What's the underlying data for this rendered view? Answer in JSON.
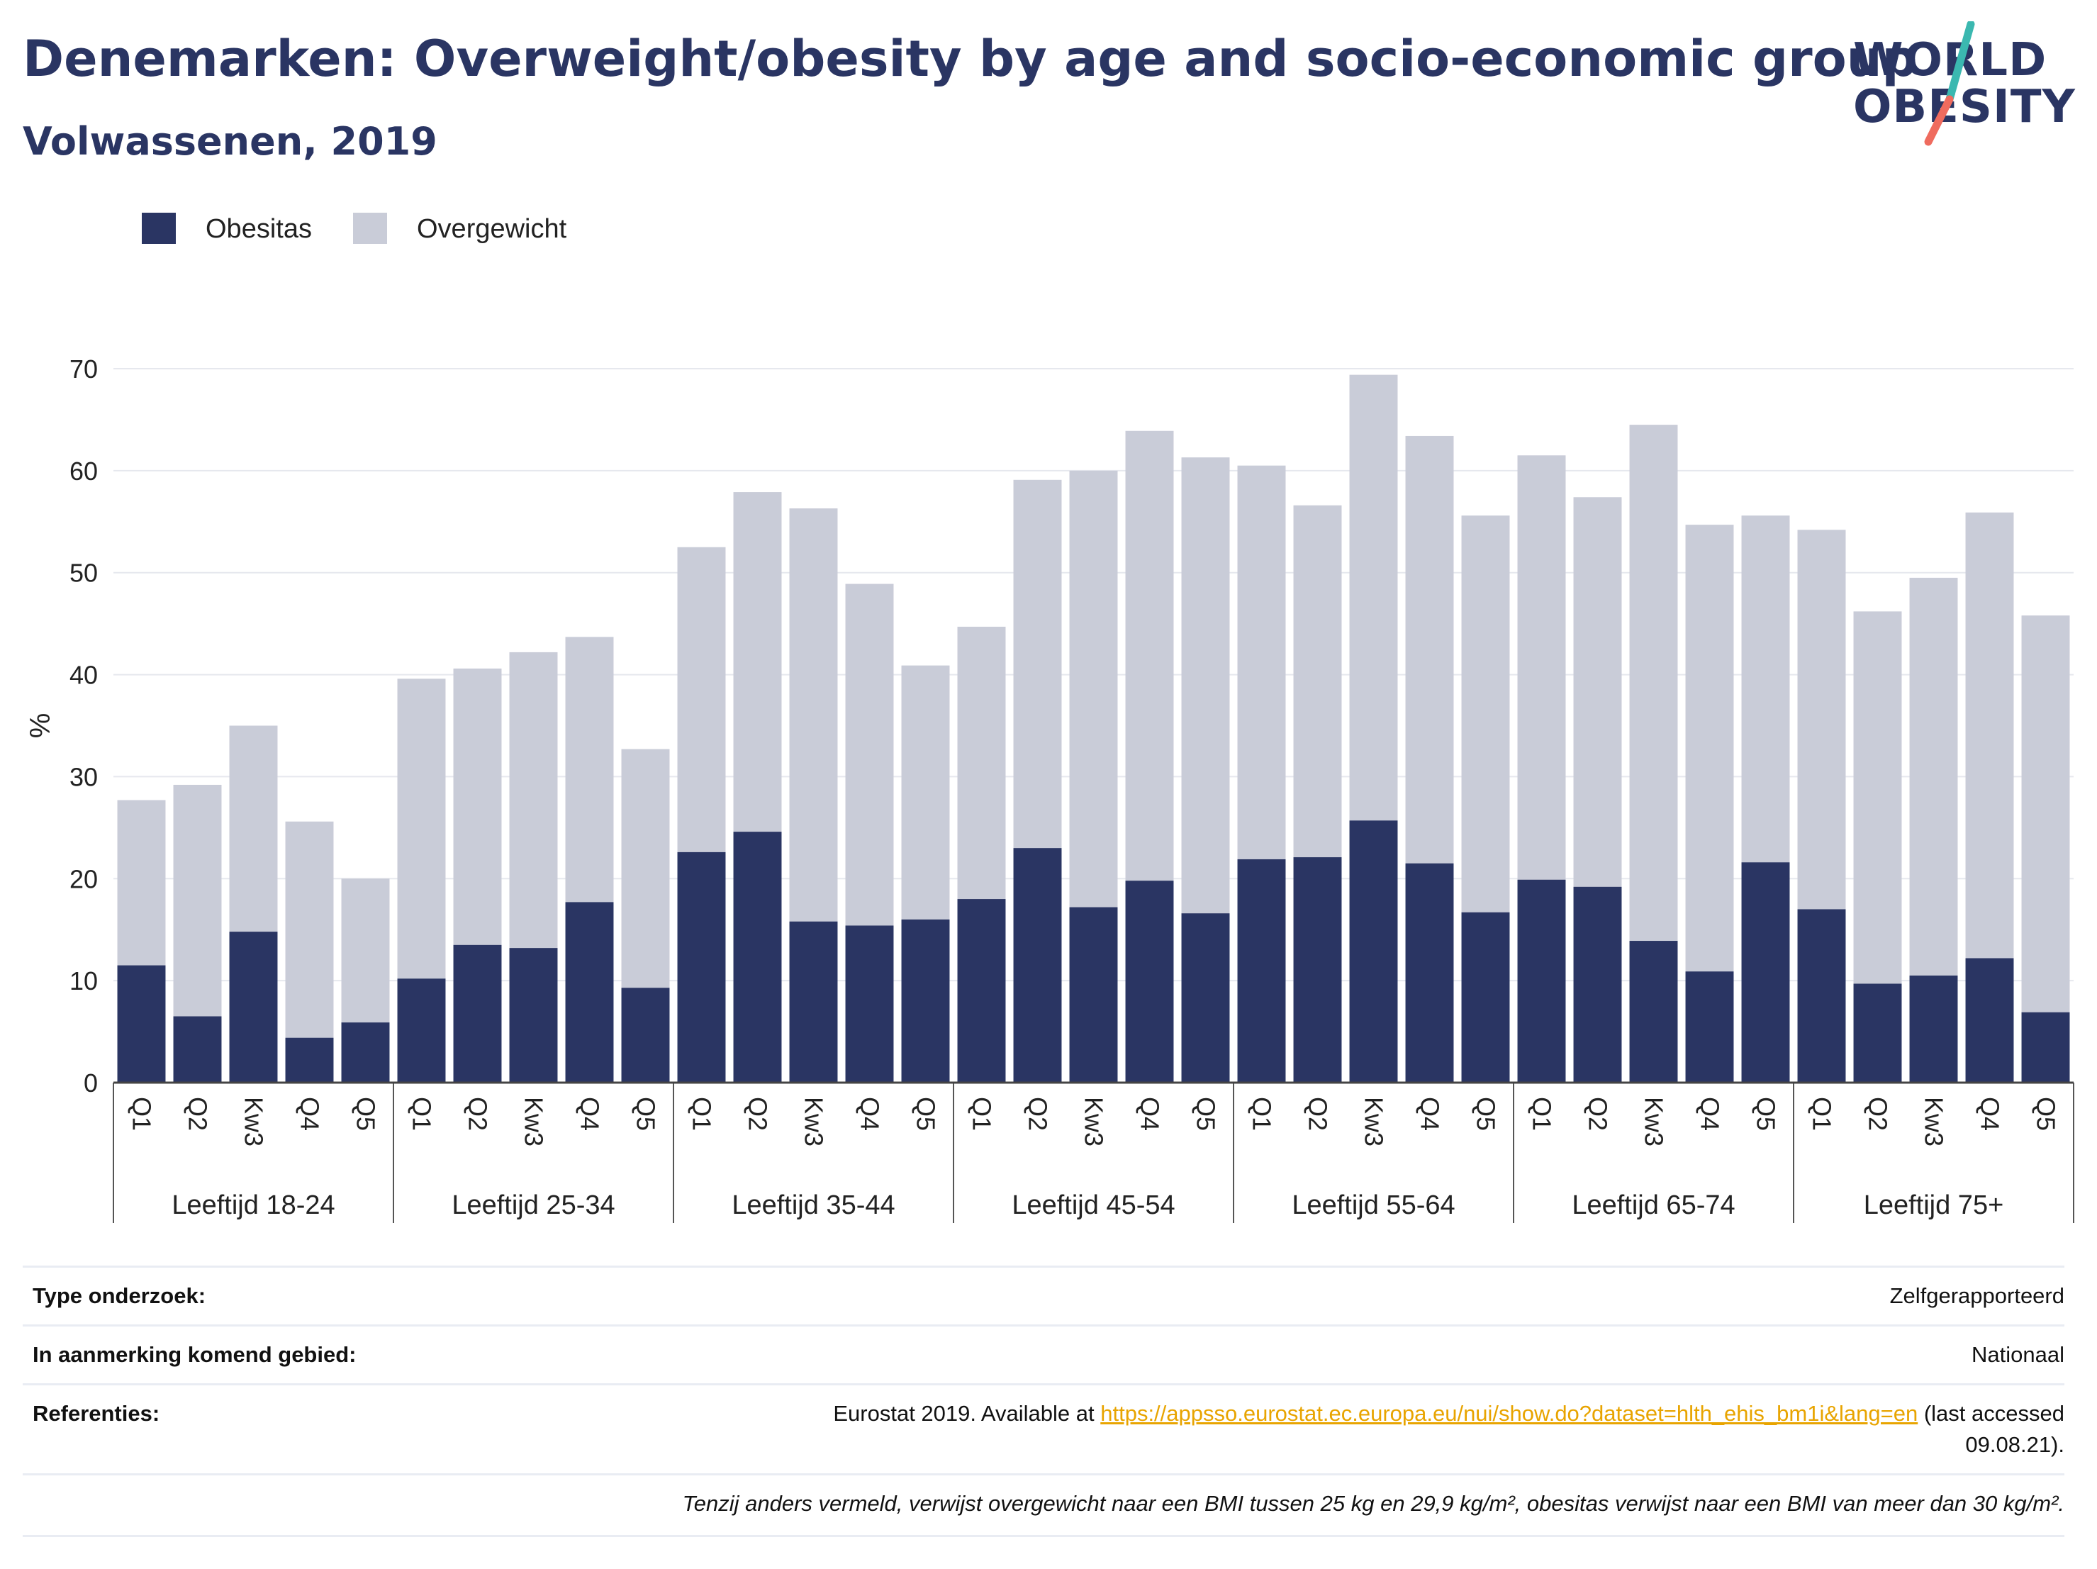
{
  "header": {
    "title": "Denemarken: Overweight/obesity by age and socio-economic group",
    "subtitle": "Volwassenen, 2019"
  },
  "logo": {
    "line1": "WORLD",
    "line2": "OBESITY"
  },
  "colors": {
    "obesity": "#2a3563",
    "overweight": "#c9ccd8",
    "title": "#2a3563",
    "link": "#e8a400",
    "logo_teal": "#3bb8b0",
    "logo_coral": "#ef6b5e"
  },
  "legend": {
    "items": [
      {
        "label": "Obesitas",
        "color": "#2a3563"
      },
      {
        "label": "Overgewicht",
        "color": "#c9ccd8"
      }
    ]
  },
  "chart_data": {
    "type": "bar",
    "stacked": true,
    "ylabel": "%",
    "ylim": [
      0,
      70
    ],
    "yticks": [
      0,
      10,
      20,
      30,
      40,
      50,
      60,
      70
    ],
    "grid": true,
    "legend_position": "top-left",
    "groups": [
      {
        "label": "Leeftijd 18-24",
        "categories": [
          "Q1",
          "Q2",
          "Kw3",
          "Q4",
          "Q5"
        ],
        "obesitas": [
          11.5,
          6.5,
          14.8,
          4.4,
          5.9
        ],
        "totaal": [
          27.7,
          29.2,
          35.0,
          25.6,
          20.0
        ]
      },
      {
        "label": "Leeftijd 25-34",
        "categories": [
          "Q1",
          "Q2",
          "Kw3",
          "Q4",
          "Q5"
        ],
        "obesitas": [
          10.2,
          13.5,
          13.2,
          17.7,
          9.3
        ],
        "totaal": [
          39.6,
          40.6,
          42.2,
          43.7,
          32.7
        ]
      },
      {
        "label": "Leeftijd 35-44",
        "categories": [
          "Q1",
          "Q2",
          "Kw3",
          "Q4",
          "Q5"
        ],
        "obesitas": [
          22.6,
          24.6,
          15.8,
          15.4,
          16.0
        ],
        "totaal": [
          52.5,
          57.9,
          56.3,
          48.9,
          40.9
        ]
      },
      {
        "label": "Leeftijd 45-54",
        "categories": [
          "Q1",
          "Q2",
          "Kw3",
          "Q4",
          "Q5"
        ],
        "obesitas": [
          18.0,
          23.0,
          17.2,
          19.8,
          16.6
        ],
        "totaal": [
          44.7,
          59.1,
          60.0,
          63.9,
          61.3
        ]
      },
      {
        "label": "Leeftijd 55-64",
        "categories": [
          "Q1",
          "Q2",
          "Kw3",
          "Q4",
          "Q5"
        ],
        "obesitas": [
          21.9,
          22.1,
          25.7,
          21.5,
          16.7
        ],
        "totaal": [
          60.5,
          56.6,
          69.4,
          63.4,
          55.6
        ]
      },
      {
        "label": "Leeftijd 65-74",
        "categories": [
          "Q1",
          "Q2",
          "Kw3",
          "Q4",
          "Q5"
        ],
        "obesitas": [
          19.9,
          19.2,
          13.9,
          10.9,
          21.6
        ],
        "totaal": [
          61.5,
          57.4,
          64.5,
          54.7,
          55.6
        ]
      },
      {
        "label": "Leeftijd 75+",
        "categories": [
          "Q1",
          "Q2",
          "Kw3",
          "Q4",
          "Q5"
        ],
        "obesitas": [
          17.0,
          9.7,
          10.5,
          12.2,
          6.9
        ],
        "totaal": [
          54.2,
          46.2,
          49.5,
          55.9,
          45.8
        ]
      }
    ]
  },
  "info": {
    "rows": [
      {
        "label": "Type onderzoek:",
        "value": "Zelfgerapporteerd"
      },
      {
        "label": "In aanmerking komend gebied:",
        "value": "Nationaal"
      }
    ],
    "reference": {
      "label": "Referenties:",
      "prefix": "Eurostat 2019. Available at ",
      "link": "https://appsso.eurostat.ec.europa.eu/nui/show.do?dataset=hlth_ehis_bm1i&lang=en",
      "suffix": " (last accessed",
      "line2": "09.08.21)."
    },
    "note": "Tenzij anders vermeld, verwijst overgewicht naar een BMI tussen 25 kg en 29,9 kg/m², obesitas verwijst naar een BMI van meer dan 30 kg/m²."
  }
}
